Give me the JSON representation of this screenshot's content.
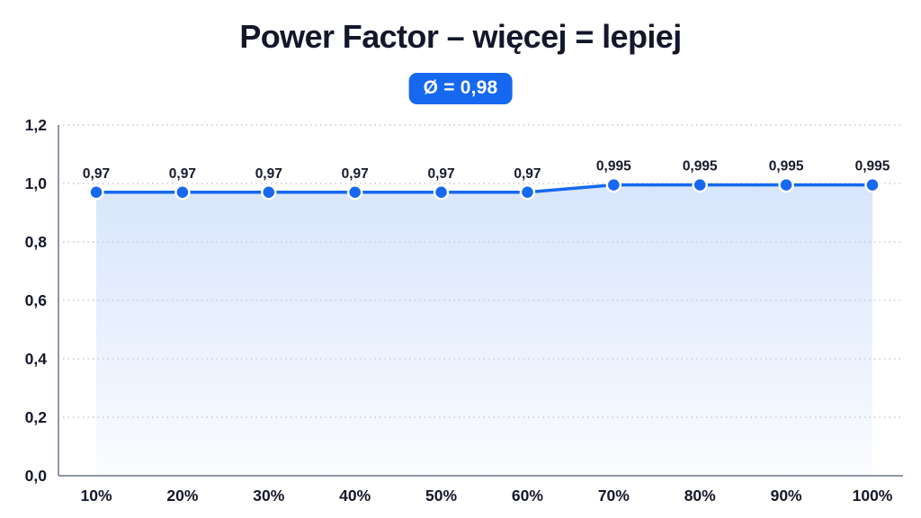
{
  "header": {
    "title": "Power Factor – więcej = lepiej",
    "badge": "Ø = 0,98"
  },
  "colors": {
    "accent": "#1668f0",
    "ink": "#14172a",
    "axis": "#9096a5",
    "grid": "#c7cad3",
    "tick_text": "#15182a",
    "data_label_text": "#171a2b",
    "badge_text": "#ffffff",
    "background": "#ffffff"
  },
  "chart_data": {
    "type": "line",
    "title": "Power Factor – więcej = lepiej",
    "average_badge": "Ø = 0,98",
    "x_categories": [
      "10%",
      "20%",
      "30%",
      "40%",
      "50%",
      "60%",
      "70%",
      "80%",
      "90%",
      "100%"
    ],
    "values": [
      0.97,
      0.97,
      0.97,
      0.97,
      0.97,
      0.97,
      0.995,
      0.995,
      0.995,
      0.995
    ],
    "point_labels": [
      "0,97",
      "0,97",
      "0,97",
      "0,97",
      "0,97",
      "0,97",
      "0,995",
      "0,995",
      "0,995",
      "0,995"
    ],
    "average_value": 0.98,
    "xlabel": "",
    "ylabel": "",
    "ylim": [
      0,
      1.2
    ],
    "yticks": [
      {
        "v": 0.0,
        "label": "0,0"
      },
      {
        "v": 0.2,
        "label": "0,2"
      },
      {
        "v": 0.4,
        "label": "0,4"
      },
      {
        "v": 0.6,
        "label": "0,6"
      },
      {
        "v": 0.8,
        "label": "0,8"
      },
      {
        "v": 1.0,
        "label": "1,0"
      },
      {
        "v": 1.2,
        "label": "1,2"
      }
    ],
    "grid": "horizontal-dotted",
    "legend": "none",
    "area_fill": true,
    "number_format": "comma-decimal"
  }
}
